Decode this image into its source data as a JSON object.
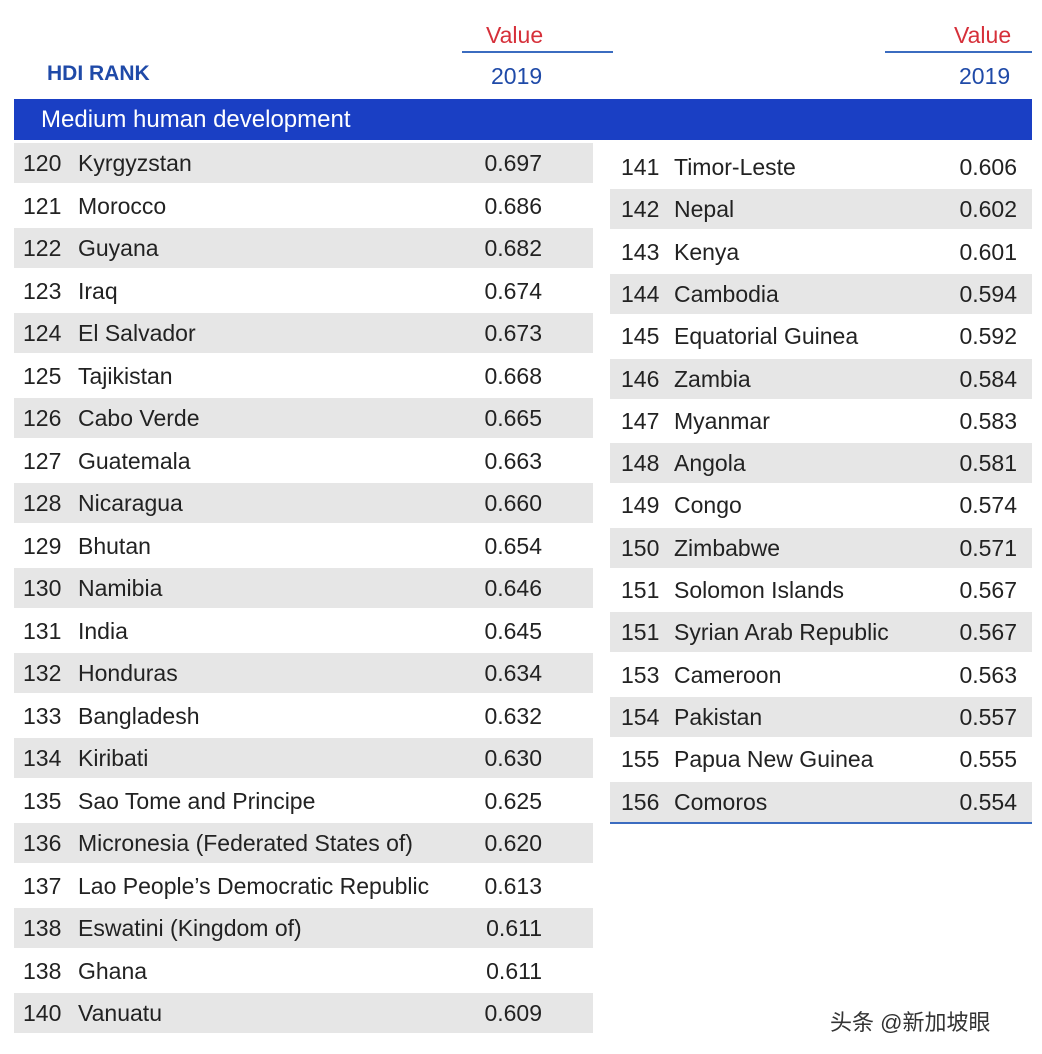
{
  "header": {
    "rank_label": "HDI RANK",
    "left_value": "Value",
    "left_year": "2019",
    "right_value": "Value",
    "right_year": "2019"
  },
  "section": "Medium human development",
  "left_rows": [
    [
      "120",
      "Kyrgyzstan",
      "0.697"
    ],
    [
      "121",
      "Morocco",
      "0.686"
    ],
    [
      "122",
      "Guyana",
      "0.682"
    ],
    [
      "123",
      "Iraq",
      "0.674"
    ],
    [
      "124",
      "El Salvador",
      "0.673"
    ],
    [
      "125",
      "Tajikistan",
      "0.668"
    ],
    [
      "126",
      "Cabo Verde",
      "0.665"
    ],
    [
      "127",
      "Guatemala",
      "0.663"
    ],
    [
      "128",
      "Nicaragua",
      "0.660"
    ],
    [
      "129",
      "Bhutan",
      "0.654"
    ],
    [
      "130",
      "Namibia",
      "0.646"
    ],
    [
      "131",
      "India",
      "0.645"
    ],
    [
      "132",
      "Honduras",
      "0.634"
    ],
    [
      "133",
      "Bangladesh",
      "0.632"
    ],
    [
      "134",
      "Kiribati",
      "0.630"
    ],
    [
      "135",
      "Sao Tome and Principe",
      "0.625"
    ],
    [
      "136",
      "Micronesia (Federated States of)",
      "0.620"
    ],
    [
      "137",
      "Lao People’s Democratic Republic",
      "0.613"
    ],
    [
      "138",
      "Eswatini (Kingdom of)",
      "0.611"
    ],
    [
      "138",
      "Ghana",
      "0.611"
    ],
    [
      "140",
      "Vanuatu",
      "0.609"
    ]
  ],
  "right_rows": [
    [
      "141",
      "Timor-Leste",
      "0.606"
    ],
    [
      "142",
      "Nepal",
      "0.602"
    ],
    [
      "143",
      "Kenya",
      "0.601"
    ],
    [
      "144",
      "Cambodia",
      "0.594"
    ],
    [
      "145",
      "Equatorial Guinea",
      "0.592"
    ],
    [
      "146",
      "Zambia",
      "0.584"
    ],
    [
      "147",
      "Myanmar",
      "0.583"
    ],
    [
      "148",
      "Angola",
      "0.581"
    ],
    [
      "149",
      "Congo",
      "0.574"
    ],
    [
      "150",
      "Zimbabwe",
      "0.571"
    ],
    [
      "151",
      "Solomon Islands",
      "0.567"
    ],
    [
      "151",
      "Syrian Arab Republic",
      "0.567"
    ],
    [
      "153",
      "Cameroon",
      "0.563"
    ],
    [
      "154",
      "Pakistan",
      "0.557"
    ],
    [
      "155",
      "Papua New Guinea",
      "0.555"
    ],
    [
      "156",
      "Comoros",
      "0.554"
    ]
  ],
  "watermark": "头条 @新加坡眼"
}
